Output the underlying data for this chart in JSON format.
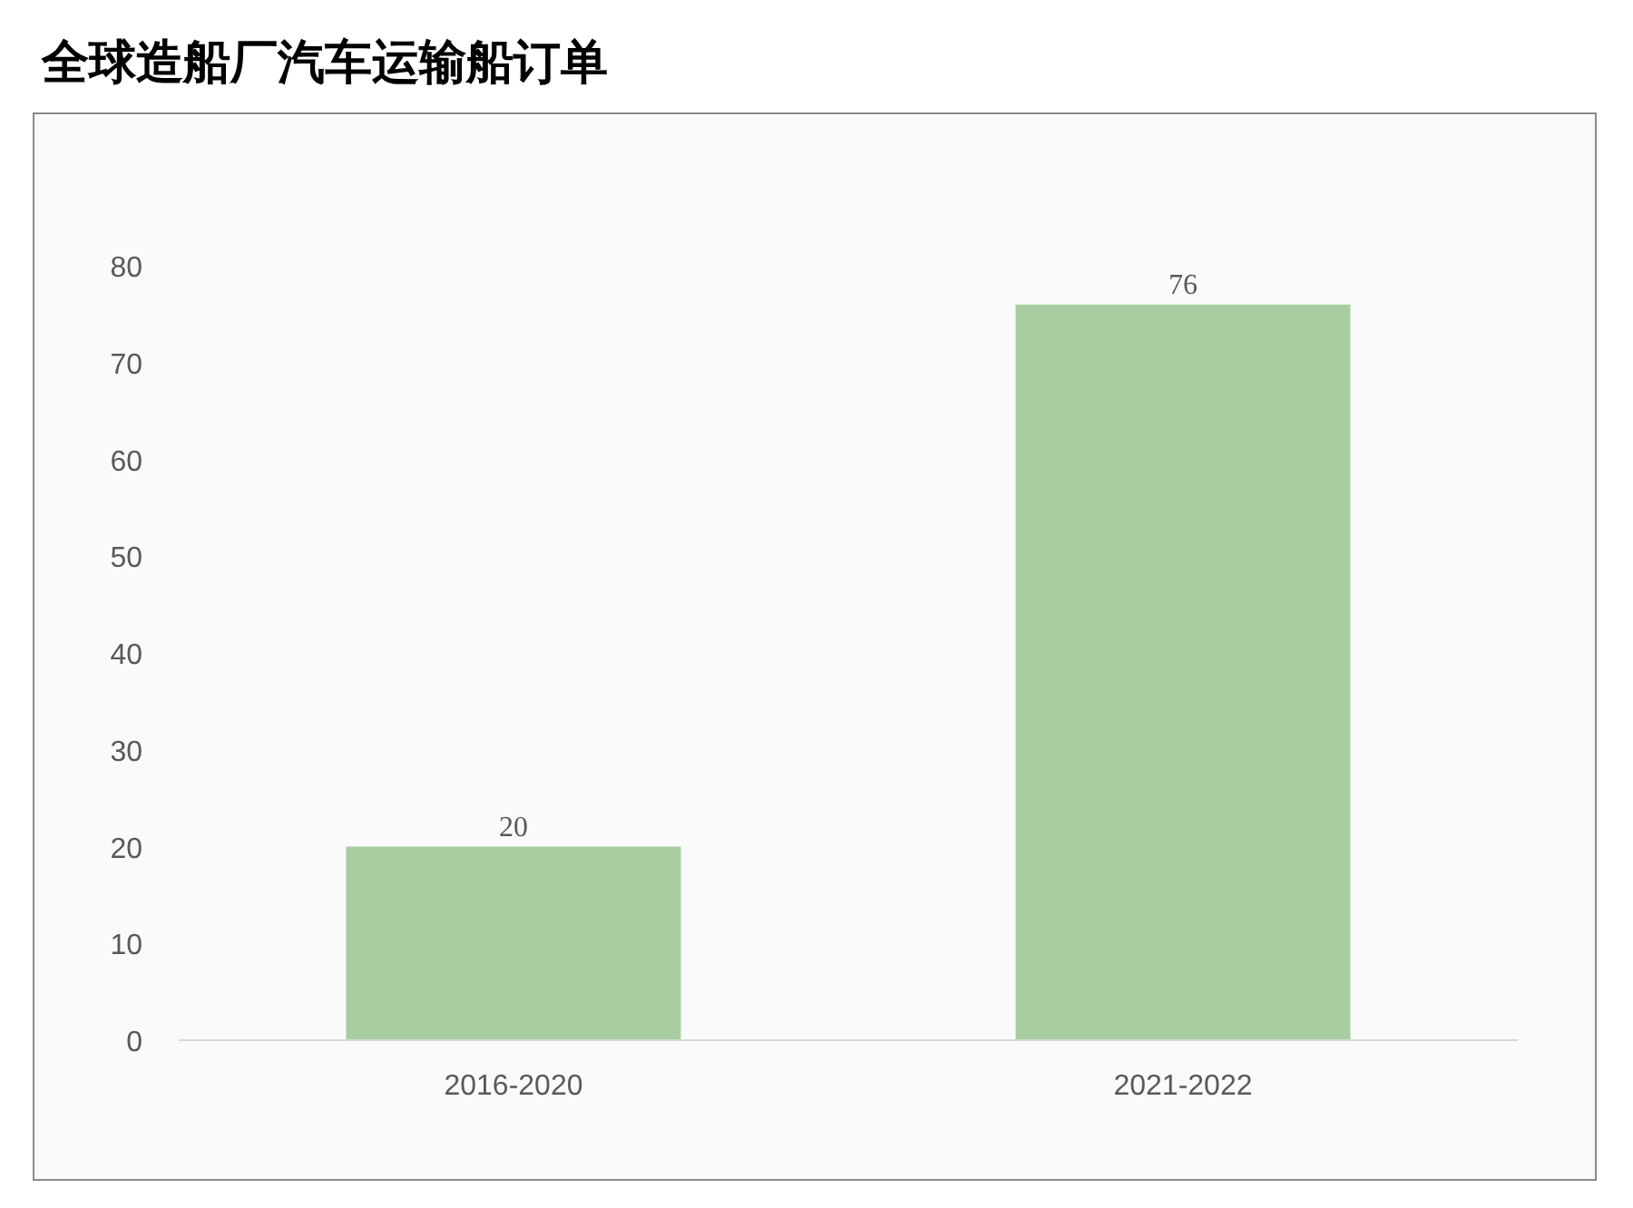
{
  "chart_data": {
    "type": "bar",
    "title": "全球造船厂汽车运输船订单",
    "categories": [
      "2016-2020",
      "2021-2022"
    ],
    "values": [
      20,
      76
    ],
    "color": "#a8cda0",
    "ylim": [
      0,
      80
    ],
    "yticks": [
      0,
      10,
      20,
      30,
      40,
      50,
      60,
      70,
      80
    ],
    "data_labels": true,
    "grid": false
  }
}
